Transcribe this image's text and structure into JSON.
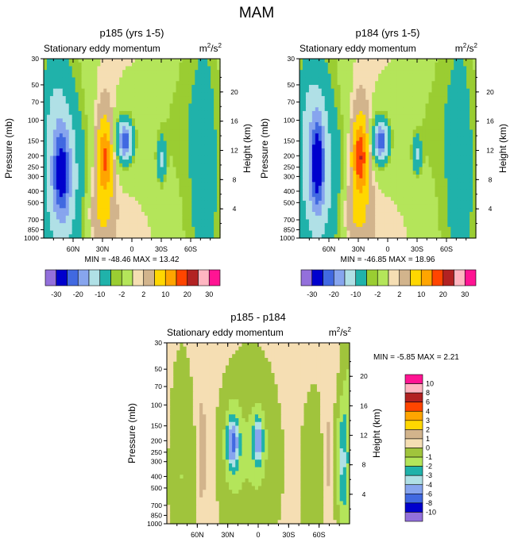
{
  "figure": {
    "title": "MAM"
  },
  "colors": {
    "-30": "#9370db",
    "-20": "#0000cd",
    "-10": "#4f6fe0",
    "-8": "#0000cd",
    "-6": "#4f6fe0",
    "-4": "#a6dcdf",
    "-3": "#20b2aa",
    "-2": "#9acd32",
    "-1": "#b4e55a",
    "0": "#a0c43c",
    "1": "#d2b48c",
    "2": "#f5deb3",
    "frame_line": "#000000"
  },
  "chart_data": [
    {
      "id": "p185",
      "type": "heatmap",
      "title": "p185 (yrs 1-5)",
      "subtitle": "Stationary eddy momentum",
      "units_base": "m",
      "units_sup1": "2",
      "units_mid": "/s",
      "units_sup2": "2",
      "ylabel": "Pressure (mb)",
      "y2label": "Height (km)",
      "x_ticks": [
        "60N",
        "30N",
        "0",
        "30S",
        "60S"
      ],
      "x_tick_values": [
        60,
        30,
        0,
        -30,
        -60
      ],
      "xlim": [
        90,
        -90
      ],
      "y_ticks": [
        "30",
        "50",
        "70",
        "100",
        "150",
        "200",
        "250",
        "300",
        "400",
        "500",
        "700",
        "850",
        "1000"
      ],
      "y_tick_values": [
        30,
        50,
        70,
        100,
        150,
        200,
        250,
        300,
        400,
        500,
        700,
        850,
        1000
      ],
      "ylim": [
        1000,
        30
      ],
      "y2_ticks": [
        "20",
        "16",
        "12",
        "8",
        "4"
      ],
      "y2_tick_values": [
        20,
        16,
        12,
        8,
        4
      ],
      "stats_min_label": "MIN =",
      "stats_min": "-48.46",
      "stats_max_label": "MAX =",
      "stats_max": "13.42",
      "contour_levels": [
        -30,
        -20,
        -15,
        -10,
        -5,
        -2,
        -1,
        1,
        2,
        5,
        10,
        15,
        20,
        25,
        30
      ],
      "colorbar_labels": [
        "-30",
        "-20",
        "-10",
        "-2",
        "2",
        "10",
        "20",
        "30"
      ],
      "colorbar_colors": [
        "#9370db",
        "#0000cd",
        "#4169e1",
        "#87a5ee",
        "#b0e0e6",
        "#20b2aa",
        "#9acd32",
        "#b4e55a",
        "#f5deb3",
        "#d2b48c",
        "#ffd700",
        "#ffa500",
        "#ff4500",
        "#b22222",
        "#ffb6c1",
        "#ff1493"
      ],
      "blobs": [
        {
          "lat": 72,
          "p": 330,
          "sx": 16,
          "sy": 1.0,
          "v": -6
        },
        {
          "lat": 72,
          "p": 270,
          "sx": 6,
          "sy": 0.6,
          "v": -18
        },
        {
          "lat": 28,
          "p": 210,
          "sx": 5,
          "sy": 0.45,
          "v": 12
        },
        {
          "lat": 28,
          "p": 300,
          "sx": 7,
          "sy": 1.1,
          "v": 4
        },
        {
          "lat": 8,
          "p": 150,
          "sx": 7,
          "sy": 0.35,
          "v": -7
        },
        {
          "lat": 7,
          "p": 150,
          "sx": 3.5,
          "sy": 0.2,
          "v": -14
        },
        {
          "lat": -30,
          "p": 220,
          "sx": 3,
          "sy": 0.3,
          "v": -5
        },
        {
          "lat": -20,
          "p": 120,
          "sx": 30,
          "sy": 0.9,
          "v": -1.5
        },
        {
          "lat": -75,
          "p": 300,
          "sx": 8,
          "sy": 1.3,
          "v": -2.5
        },
        {
          "lat": 80,
          "p": 70,
          "sx": 10,
          "sy": 0.6,
          "v": -2.5
        },
        {
          "lat": 35,
          "p": 600,
          "sx": 10,
          "sy": 0.4,
          "v": 2.5
        }
      ]
    },
    {
      "id": "p184",
      "type": "heatmap",
      "title": "p184 (yrs 1-5)",
      "subtitle": "Stationary eddy momentum",
      "units_base": "m",
      "units_sup1": "2",
      "units_mid": "/s",
      "units_sup2": "2",
      "ylabel": "Pressure (mb)",
      "y2label": "Height (km)",
      "x_ticks": [
        "60N",
        "30N",
        "0",
        "30S",
        "60S"
      ],
      "x_tick_values": [
        60,
        30,
        0,
        -30,
        -60
      ],
      "xlim": [
        90,
        -90
      ],
      "y_ticks": [
        "30",
        "50",
        "70",
        "100",
        "150",
        "200",
        "250",
        "300",
        "400",
        "500",
        "700",
        "850",
        "1000"
      ],
      "y_tick_values": [
        30,
        50,
        70,
        100,
        150,
        200,
        250,
        300,
        400,
        500,
        700,
        850,
        1000
      ],
      "ylim": [
        1000,
        30
      ],
      "y2_ticks": [
        "20",
        "16",
        "12",
        "8",
        "4"
      ],
      "y2_tick_values": [
        20,
        16,
        12,
        8,
        4
      ],
      "stats_min_label": "MIN =",
      "stats_min": "-46.85",
      "stats_max_label": "MAX =",
      "stats_max": "18.96",
      "contour_levels": [
        -30,
        -20,
        -15,
        -10,
        -5,
        -2,
        -1,
        1,
        2,
        5,
        10,
        15,
        20,
        25,
        30
      ],
      "colorbar_labels": [
        "-30",
        "-20",
        "-10",
        "-2",
        "2",
        "10",
        "20",
        "30"
      ],
      "colorbar_colors": [
        "#9370db",
        "#0000cd",
        "#4169e1",
        "#87a5ee",
        "#b0e0e6",
        "#20b2aa",
        "#9acd32",
        "#b4e55a",
        "#f5deb3",
        "#d2b48c",
        "#ffd700",
        "#ffa500",
        "#ff4500",
        "#b22222",
        "#ffb6c1",
        "#ff1493"
      ],
      "blobs": [
        {
          "lat": 72,
          "p": 300,
          "sx": 16,
          "sy": 1.0,
          "v": -6
        },
        {
          "lat": 72,
          "p": 230,
          "sx": 5,
          "sy": 0.6,
          "v": -20
        },
        {
          "lat": 28,
          "p": 200,
          "sx": 5,
          "sy": 0.45,
          "v": 16
        },
        {
          "lat": 28,
          "p": 300,
          "sx": 8,
          "sy": 1.1,
          "v": 4
        },
        {
          "lat": 8,
          "p": 150,
          "sx": 7,
          "sy": 0.35,
          "v": -7
        },
        {
          "lat": 7,
          "p": 150,
          "sx": 3.5,
          "sy": 0.2,
          "v": -14
        },
        {
          "lat": -30,
          "p": 200,
          "sx": 3,
          "sy": 0.25,
          "v": -5
        },
        {
          "lat": -20,
          "p": 120,
          "sx": 30,
          "sy": 0.9,
          "v": -1.5
        },
        {
          "lat": -75,
          "p": 300,
          "sx": 8,
          "sy": 1.3,
          "v": -2.5
        },
        {
          "lat": 80,
          "p": 70,
          "sx": 10,
          "sy": 0.6,
          "v": -2.5
        },
        {
          "lat": 35,
          "p": 600,
          "sx": 10,
          "sy": 0.4,
          "v": 2.5
        }
      ]
    },
    {
      "id": "diff",
      "type": "heatmap",
      "title": "p185 - p184",
      "subtitle": "Stationary eddy momentum",
      "units_base": "m",
      "units_sup1": "2",
      "units_mid": "/s",
      "units_sup2": "2",
      "ylabel": "Pressure (mb)",
      "y2label": "Height (km)",
      "x_ticks": [
        "60N",
        "30N",
        "0",
        "30S",
        "60S"
      ],
      "x_tick_values": [
        60,
        30,
        0,
        -30,
        -60
      ],
      "xlim": [
        90,
        -90
      ],
      "y_ticks": [
        "30",
        "50",
        "70",
        "100",
        "150",
        "200",
        "250",
        "300",
        "400",
        "500",
        "700",
        "850",
        "1000"
      ],
      "y_tick_values": [
        30,
        50,
        70,
        100,
        150,
        200,
        250,
        300,
        400,
        500,
        700,
        850,
        1000
      ],
      "ylim": [
        1000,
        30
      ],
      "y2_ticks": [
        "20",
        "16",
        "12",
        "8",
        "4"
      ],
      "y2_tick_values": [
        20,
        16,
        12,
        8,
        4
      ],
      "stats_min_label": "MIN =",
      "stats_min": "-5.85",
      "stats_max_label": "MAX =",
      "stats_max": "2.21",
      "contour_levels": [
        -10,
        -8,
        -6,
        -4,
        -3,
        -2,
        -1,
        0,
        1,
        2,
        3,
        4,
        6,
        8,
        10
      ],
      "colorbar_labels": [
        "10",
        "8",
        "6",
        "4",
        "3",
        "2",
        "1",
        "0",
        "-1",
        "-2",
        "-3",
        "-4",
        "-6",
        "-8",
        "-10"
      ],
      "colorbar_colors": [
        "#ff1493",
        "#ffb6c1",
        "#b22222",
        "#ff4500",
        "#ffa500",
        "#ffd700",
        "#d2b48c",
        "#f5deb3",
        "#a0c43c",
        "#b4e55a",
        "#20b2aa",
        "#b0e0e6",
        "#87a5ee",
        "#4169e1",
        "#0000cd",
        "#9370db"
      ],
      "blobs": [
        {
          "lat": 55,
          "p": 250,
          "sx": 3,
          "sy": 1.2,
          "v": 1.2
        },
        {
          "lat": 25,
          "p": 210,
          "sx": 6,
          "sy": 0.55,
          "v": -2.5
        },
        {
          "lat": 25,
          "p": 210,
          "sx": 3,
          "sy": 0.25,
          "v": -4
        },
        {
          "lat": 0,
          "p": 200,
          "sx": 5,
          "sy": 0.45,
          "v": -2.2
        },
        {
          "lat": 0,
          "p": 200,
          "sx": 2,
          "sy": 0.2,
          "v": -4
        },
        {
          "lat": 8,
          "p": 300,
          "sx": 20,
          "sy": 1.4,
          "v": -1.2
        },
        {
          "lat": 75,
          "p": 400,
          "sx": 8,
          "sy": 1.5,
          "v": -1.3
        },
        {
          "lat": -68,
          "p": 300,
          "sx": 3,
          "sy": 1.3,
          "v": 1.1
        },
        {
          "lat": -82,
          "p": 300,
          "sx": 4,
          "sy": 0.8,
          "v": -3
        },
        {
          "lat": -55,
          "p": 500,
          "sx": 8,
          "sy": 1.2,
          "v": -1.2
        },
        {
          "lat": -88,
          "p": 200,
          "sx": 4,
          "sy": 2.2,
          "v": -1.5
        }
      ]
    }
  ]
}
